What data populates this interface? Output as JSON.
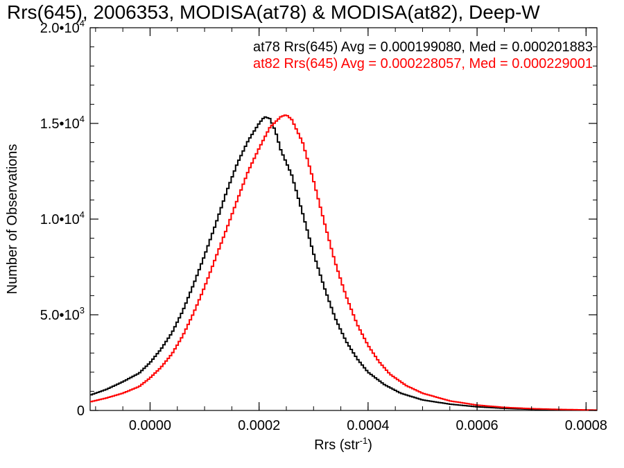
{
  "chart_data": {
    "type": "line",
    "title": "Rrs(645), 2006353, MODISA(at78) & MODISA(at82), Deep-W",
    "xlabel": "Rrs (str",
    "xlabel_sup": "-1",
    "xlabel_close": ")",
    "ylabel": "Number of Observations",
    "xlim": [
      -0.00011,
      0.00082
    ],
    "ylim": [
      0,
      20000
    ],
    "x_ticks": [
      {
        "value": 0.0,
        "label": "0.0000"
      },
      {
        "value": 0.0002,
        "label": "0.0002"
      },
      {
        "value": 0.0004,
        "label": "0.0004"
      },
      {
        "value": 0.0006,
        "label": "0.0006"
      },
      {
        "value": 0.0008,
        "label": "0.0008"
      }
    ],
    "y_ticks": [
      {
        "value": 0,
        "label": "0",
        "exp": ""
      },
      {
        "value": 5000,
        "label": "5.0•10",
        "exp": "3"
      },
      {
        "value": 10000,
        "label": "1.0•10",
        "exp": "4"
      },
      {
        "value": 15000,
        "label": "1.5•10",
        "exp": "4"
      },
      {
        "value": 20000,
        "label": "2.0•10",
        "exp": "4"
      }
    ],
    "grid": false,
    "legend_position": "top-right",
    "series": [
      {
        "name": "at78 Rrs(645) Avg = 0.000199080, Med = 0.000201883",
        "color": "#000000",
        "style": "step",
        "points": [
          [
            -0.00011,
            800
          ],
          [
            -8e-05,
            1100
          ],
          [
            -5e-05,
            1500
          ],
          [
            -2e-05,
            1950
          ],
          [
            0.0,
            2500
          ],
          [
            2e-05,
            3200
          ],
          [
            4e-05,
            4050
          ],
          [
            6e-05,
            5200
          ],
          [
            8e-05,
            6600
          ],
          [
            0.0001,
            8100
          ],
          [
            0.00012,
            9700
          ],
          [
            0.00014,
            11400
          ],
          [
            0.00016,
            12900
          ],
          [
            0.00018,
            14100
          ],
          [
            0.0002,
            15000
          ],
          [
            0.00021,
            15350
          ],
          [
            0.00022,
            15250
          ],
          [
            0.00023,
            14600
          ],
          [
            0.00024,
            13600
          ],
          [
            0.00026,
            12300
          ],
          [
            0.00028,
            10300
          ],
          [
            0.0003,
            8200
          ],
          [
            0.00032,
            6400
          ],
          [
            0.00034,
            4800
          ],
          [
            0.00036,
            3600
          ],
          [
            0.00038,
            2700
          ],
          [
            0.0004,
            2000
          ],
          [
            0.00043,
            1350
          ],
          [
            0.00046,
            900
          ],
          [
            0.0005,
            550
          ],
          [
            0.00055,
            330
          ],
          [
            0.0006,
            190
          ],
          [
            0.00065,
            110
          ],
          [
            0.0007,
            60
          ],
          [
            0.00075,
            35
          ],
          [
            0.0008,
            20
          ],
          [
            0.00082,
            15
          ]
        ]
      },
      {
        "name": "at82 Rrs(645) Avg = 0.000228057, Med = 0.000229001",
        "color": "#ff0000",
        "style": "step",
        "points": [
          [
            -0.00011,
            450
          ],
          [
            -8e-05,
            650
          ],
          [
            -5e-05,
            900
          ],
          [
            -2e-05,
            1250
          ],
          [
            0.0,
            1700
          ],
          [
            2e-05,
            2250
          ],
          [
            4e-05,
            2950
          ],
          [
            6e-05,
            3900
          ],
          [
            8e-05,
            5100
          ],
          [
            0.0001,
            6450
          ],
          [
            0.00012,
            7950
          ],
          [
            0.00014,
            9450
          ],
          [
            0.00016,
            11000
          ],
          [
            0.00018,
            12500
          ],
          [
            0.0002,
            13700
          ],
          [
            0.00022,
            14800
          ],
          [
            0.00024,
            15350
          ],
          [
            0.00025,
            15450
          ],
          [
            0.00026,
            15200
          ],
          [
            0.00028,
            14000
          ],
          [
            0.0003,
            12000
          ],
          [
            0.00032,
            9800
          ],
          [
            0.00034,
            7700
          ],
          [
            0.00036,
            5950
          ],
          [
            0.00038,
            4500
          ],
          [
            0.0004,
            3400
          ],
          [
            0.00042,
            2550
          ],
          [
            0.00044,
            1900
          ],
          [
            0.00047,
            1300
          ],
          [
            0.0005,
            900
          ],
          [
            0.00055,
            500
          ],
          [
            0.0006,
            280
          ],
          [
            0.00065,
            160
          ],
          [
            0.0007,
            95
          ],
          [
            0.00075,
            55
          ],
          [
            0.0008,
            30
          ],
          [
            0.00082,
            20
          ]
        ]
      }
    ]
  }
}
